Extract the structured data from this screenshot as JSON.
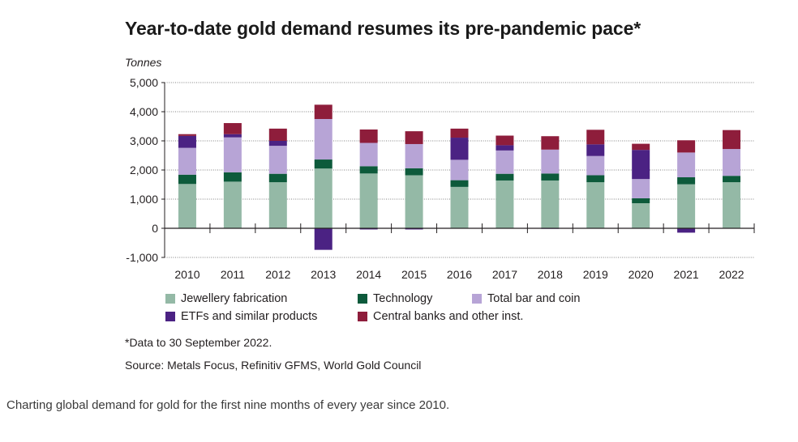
{
  "page": {
    "title": "Year-to-date gold demand resumes its pre-pandemic pace*",
    "footnote": "*Data to 30 September 2022.",
    "source": "Source: Metals Focus, Refinitiv GFMS, World Gold Council",
    "caption": "Charting global demand for gold for the first nine months of every year since 2010."
  },
  "chart_data": {
    "type": "bar",
    "stacked": true,
    "title": "Year-to-date gold demand resumes its pre-pandemic pace*",
    "ylabel": "Tonnes",
    "xlabel": "",
    "ylim": [
      -1000,
      5000
    ],
    "yticks": [
      -1000,
      0,
      1000,
      2000,
      3000,
      4000,
      5000
    ],
    "ytick_labels": [
      "-1,000",
      "0",
      "1,000",
      "2,000",
      "3,000",
      "4,000",
      "5,000"
    ],
    "grid": "horizontal dotted",
    "legend_position": "bottom",
    "categories": [
      "2010",
      "2011",
      "2012",
      "2013",
      "2014",
      "2015",
      "2016",
      "2017",
      "2018",
      "2019",
      "2020",
      "2021",
      "2022"
    ],
    "series": [
      {
        "name": "Jewellery fabrication",
        "color": "#94b9a6",
        "values": [
          1520,
          1600,
          1580,
          2050,
          1880,
          1820,
          1420,
          1640,
          1640,
          1580,
          860,
          1510,
          1580
        ]
      },
      {
        "name": "Technology",
        "color": "#0d5a3b",
        "values": [
          320,
          320,
          290,
          310,
          250,
          240,
          230,
          230,
          240,
          240,
          170,
          240,
          220
        ]
      },
      {
        "name": "Total bar and coin",
        "color": "#b7a4d6",
        "values": [
          920,
          1200,
          960,
          1390,
          800,
          830,
          700,
          800,
          820,
          660,
          660,
          850,
          920
        ]
      },
      {
        "name": "ETFs and similar products",
        "color": "#4b2283",
        "values": [
          410,
          110,
          170,
          0,
          -50,
          -40,
          760,
          180,
          0,
          400,
          1000,
          0,
          0
        ]
      },
      {
        "name": "Central banks and other inst.",
        "color": "#8e1d3b",
        "values": [
          60,
          380,
          420,
          490,
          460,
          440,
          310,
          330,
          460,
          500,
          210,
          420,
          650
        ]
      }
    ],
    "negative_values": {
      "ETFs and similar products": [
        0,
        0,
        0,
        -740,
        -40,
        -40,
        0,
        0,
        -20,
        0,
        0,
        -150,
        0
      ]
    }
  }
}
